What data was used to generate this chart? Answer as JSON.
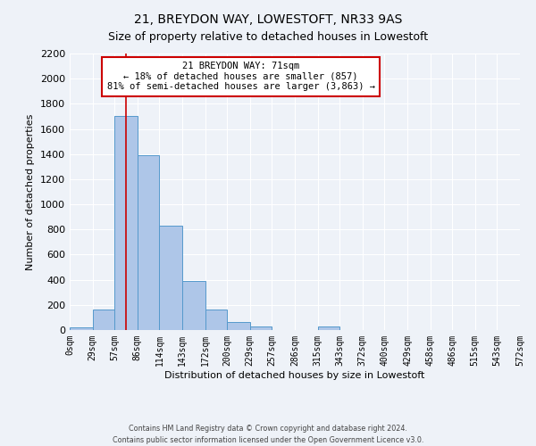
{
  "title": "21, BREYDON WAY, LOWESTOFT, NR33 9AS",
  "subtitle": "Size of property relative to detached houses in Lowestoft",
  "xlabel": "Distribution of detached houses by size in Lowestoft",
  "ylabel": "Number of detached properties",
  "bar_edges": [
    0,
    29,
    57,
    86,
    114,
    143,
    172,
    200,
    229,
    257,
    286,
    315,
    343,
    372,
    400,
    429,
    458,
    486,
    515,
    543,
    572
  ],
  "bar_heights": [
    20,
    160,
    1700,
    1390,
    830,
    390,
    165,
    65,
    30,
    0,
    0,
    25,
    0,
    0,
    0,
    0,
    0,
    0,
    0,
    0
  ],
  "bar_color": "#aec6e8",
  "bar_edge_color": "#5599cc",
  "vline_x": 71,
  "vline_color": "#cc0000",
  "annotation_line1": "21 BREYDON WAY: 71sqm",
  "annotation_line2": "← 18% of detached houses are smaller (857)",
  "annotation_line3": "81% of semi-detached houses are larger (3,863) →",
  "annotation_box_color": "#ffffff",
  "annotation_box_edge_color": "#cc0000",
  "ylim": [
    0,
    2200
  ],
  "yticks": [
    0,
    200,
    400,
    600,
    800,
    1000,
    1200,
    1400,
    1600,
    1800,
    2000,
    2200
  ],
  "xtick_labels": [
    "0sqm",
    "29sqm",
    "57sqm",
    "86sqm",
    "114sqm",
    "143sqm",
    "172sqm",
    "200sqm",
    "229sqm",
    "257sqm",
    "286sqm",
    "315sqm",
    "343sqm",
    "372sqm",
    "400sqm",
    "429sqm",
    "458sqm",
    "486sqm",
    "515sqm",
    "543sqm",
    "572sqm"
  ],
  "footer_line1": "Contains HM Land Registry data © Crown copyright and database right 2024.",
  "footer_line2": "Contains public sector information licensed under the Open Government Licence v3.0.",
  "bg_color": "#eef2f8",
  "plot_bg_color": "#eef2f8",
  "grid_color": "#ffffff",
  "title_fontsize": 10,
  "subtitle_fontsize": 9
}
